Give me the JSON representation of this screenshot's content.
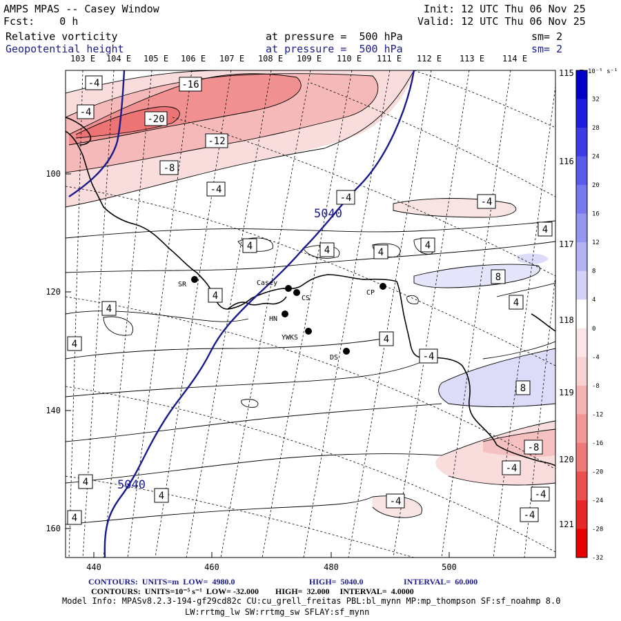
{
  "header": {
    "title": "AMPS MPAS -- Casey Window",
    "fcst": "Fcst:    0 h",
    "init": "Init: 12 UTC Thu 06 Nov 25",
    "valid": "Valid: 12 UTC Thu 06 Nov 25",
    "field1_name": "Relative vorticity",
    "field1_level": "at pressure =  500 hPa",
    "field1_sm": "sm= 2",
    "field2_name": "Geopotential height",
    "field2_level": "at pressure =  500 hPa",
    "field2_sm": "sm= 2"
  },
  "longitude_labels_top": [
    "103 E",
    "104 E",
    "105 E",
    "106 E",
    "107 E",
    "108 E",
    "109 E",
    "110 E",
    "111 E",
    "112 E",
    "113 E",
    "114 E"
  ],
  "longitude_labels_right": [
    "115 E",
    "116 E",
    "117 E",
    "118 E",
    "119 E",
    "120 E",
    "121 E"
  ],
  "x_axis_ticks": [
    "440",
    "460",
    "480",
    "500"
  ],
  "y_axis_ticks": [
    "100",
    "120",
    "140",
    "160"
  ],
  "stations": [
    {
      "name": "SR"
    },
    {
      "name": "Casey"
    },
    {
      "name": "CS"
    },
    {
      "name": "HN"
    },
    {
      "name": "YWKS"
    },
    {
      "name": "DS"
    },
    {
      "name": "CP"
    }
  ],
  "vorticity_contour_labels": [
    "-4",
    "-4",
    "-16",
    "-20",
    "-12",
    "-8",
    "-4",
    "-4",
    "-4",
    "4",
    "4",
    "4",
    "4",
    "4",
    "4",
    "8",
    "4",
    "4",
    "4",
    "4",
    "-4",
    "8",
    "-8",
    "-4",
    "4",
    "4",
    "-4",
    "-4",
    "-4",
    "4",
    "4"
  ],
  "height_contour_labels": [
    "5040",
    "5040"
  ],
  "colorbar": {
    "unit": "10⁻⁵ s⁻¹",
    "labels": [
      "32",
      "28",
      "24",
      "20",
      "16",
      "12",
      "8",
      "4",
      "0",
      "-4",
      "-8",
      "-12",
      "-16",
      "-20",
      "-24",
      "-28",
      "-32"
    ],
    "colors": [
      "#0000c8",
      "#1e1ee0",
      "#3c3ce6",
      "#5a5aeb",
      "#7878ef",
      "#9696f2",
      "#b4b4f5",
      "#d2d2f9",
      "#ffffff",
      "#fae6e6",
      "#f8d2d2",
      "#f5b4b4",
      "#f29696",
      "#ef7878",
      "#eb5050",
      "#e82828",
      "#e60000"
    ]
  },
  "footer": {
    "line1_contours": "CONTOURS:  UNITS=m  LOW=  4980.0",
    "line1_high": "HIGH=  5040.0",
    "line1_interval": "INTERVAL=  60.000",
    "line2": "CONTOURS:  UNITS=10⁻⁵ s⁻¹  LOW= -32.000        HIGH=  32.000     INTERVAL=  4.0000",
    "model_info": "Model Info: MPASv8.2.3-194-gf29cd82c CU:cu_grell_freitas PBL:bl_mynn MP:mp_thompson SF:sf_noahmp 8.0",
    "model_info2": "LW:rrtmg_lw SW:rrtmg_sw SFLAY:sf_mynn"
  }
}
